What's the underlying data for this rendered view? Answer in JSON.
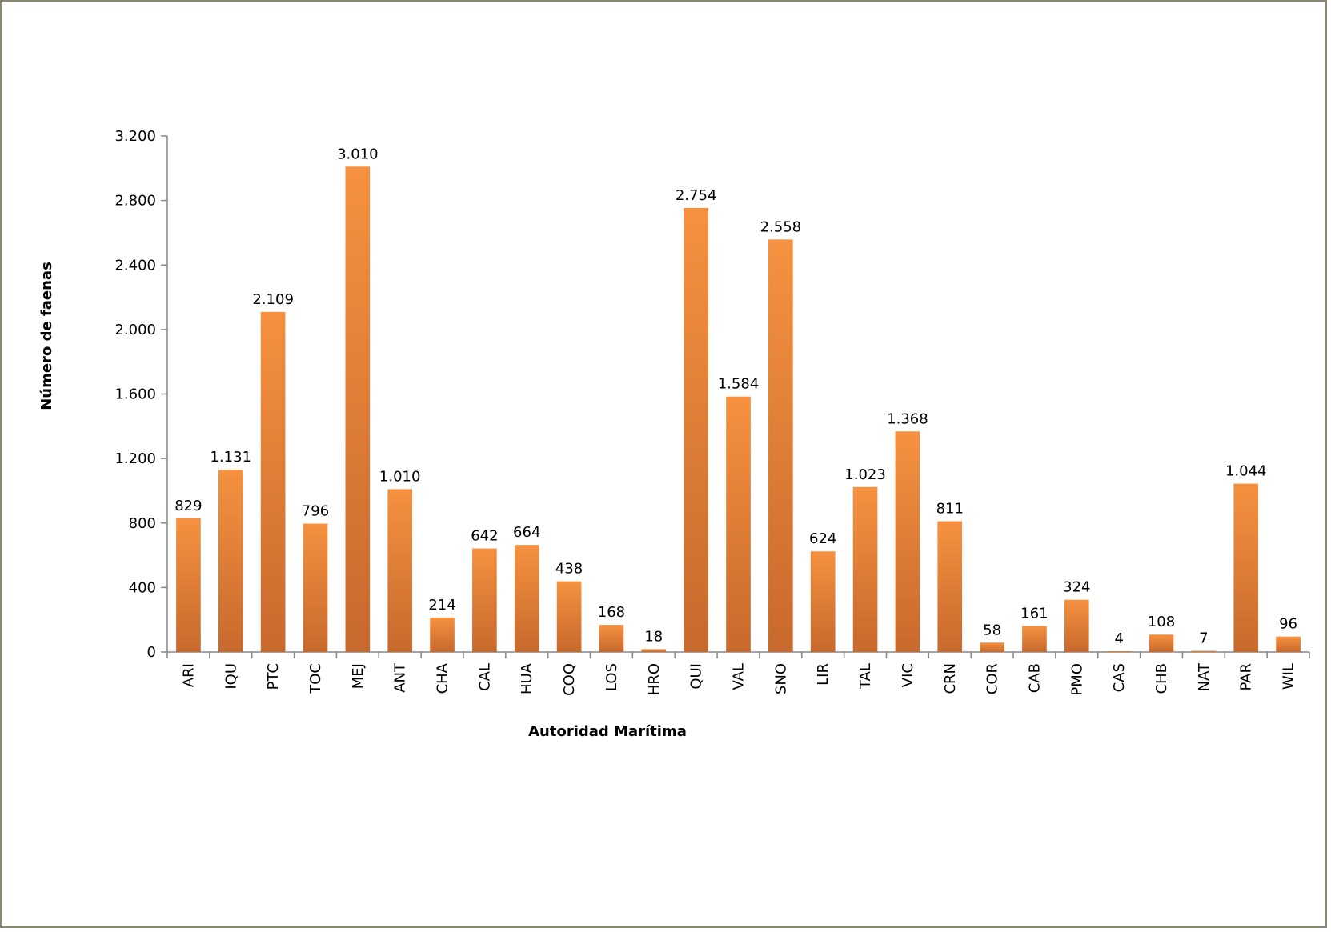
{
  "chart_data": {
    "type": "bar",
    "title": "",
    "xlabel": "Autoridad Marítima",
    "ylabel": "Número de faenas",
    "ylim": [
      0,
      3200
    ],
    "yticks": [
      0,
      400,
      800,
      1200,
      1600,
      2000,
      2400,
      2800,
      3200
    ],
    "ytick_labels": [
      "0",
      "400",
      "800",
      "1.200",
      "1.600",
      "2.000",
      "2.400",
      "2.800",
      "3.200"
    ],
    "grid": false,
    "legend": "none",
    "categories": [
      "ARI",
      "IQU",
      "PTC",
      "TOC",
      "MEJ",
      "ANT",
      "CHA",
      "CAL",
      "HUA",
      "COQ",
      "LOS",
      "HRO",
      "QUI",
      "VAL",
      "SNO",
      "LIR",
      "TAL",
      "VIC",
      "CRN",
      "COR",
      "CAB",
      "PMO",
      "CAS",
      "CHB",
      "NAT",
      "PAR",
      "WIL"
    ],
    "values": [
      829,
      1131,
      2109,
      796,
      3010,
      1010,
      214,
      642,
      664,
      438,
      168,
      18,
      2754,
      1584,
      2558,
      624,
      1023,
      1368,
      811,
      58,
      161,
      324,
      4,
      108,
      7,
      1044,
      96
    ],
    "value_labels": [
      "829",
      "1.131",
      "2.109",
      "796",
      "3.010",
      "1.010",
      "214",
      "642",
      "664",
      "438",
      "168",
      "18",
      "2.754",
      "1.584",
      "2.558",
      "624",
      "1.023",
      "1.368",
      "811",
      "58",
      "161",
      "324",
      "4",
      "108",
      "7",
      "1.044",
      "96"
    ],
    "colors": {
      "bar_top": "#f5913f",
      "bar_bottom": "#c8692d",
      "axis": "#868686",
      "frame": "#8c8773"
    }
  }
}
